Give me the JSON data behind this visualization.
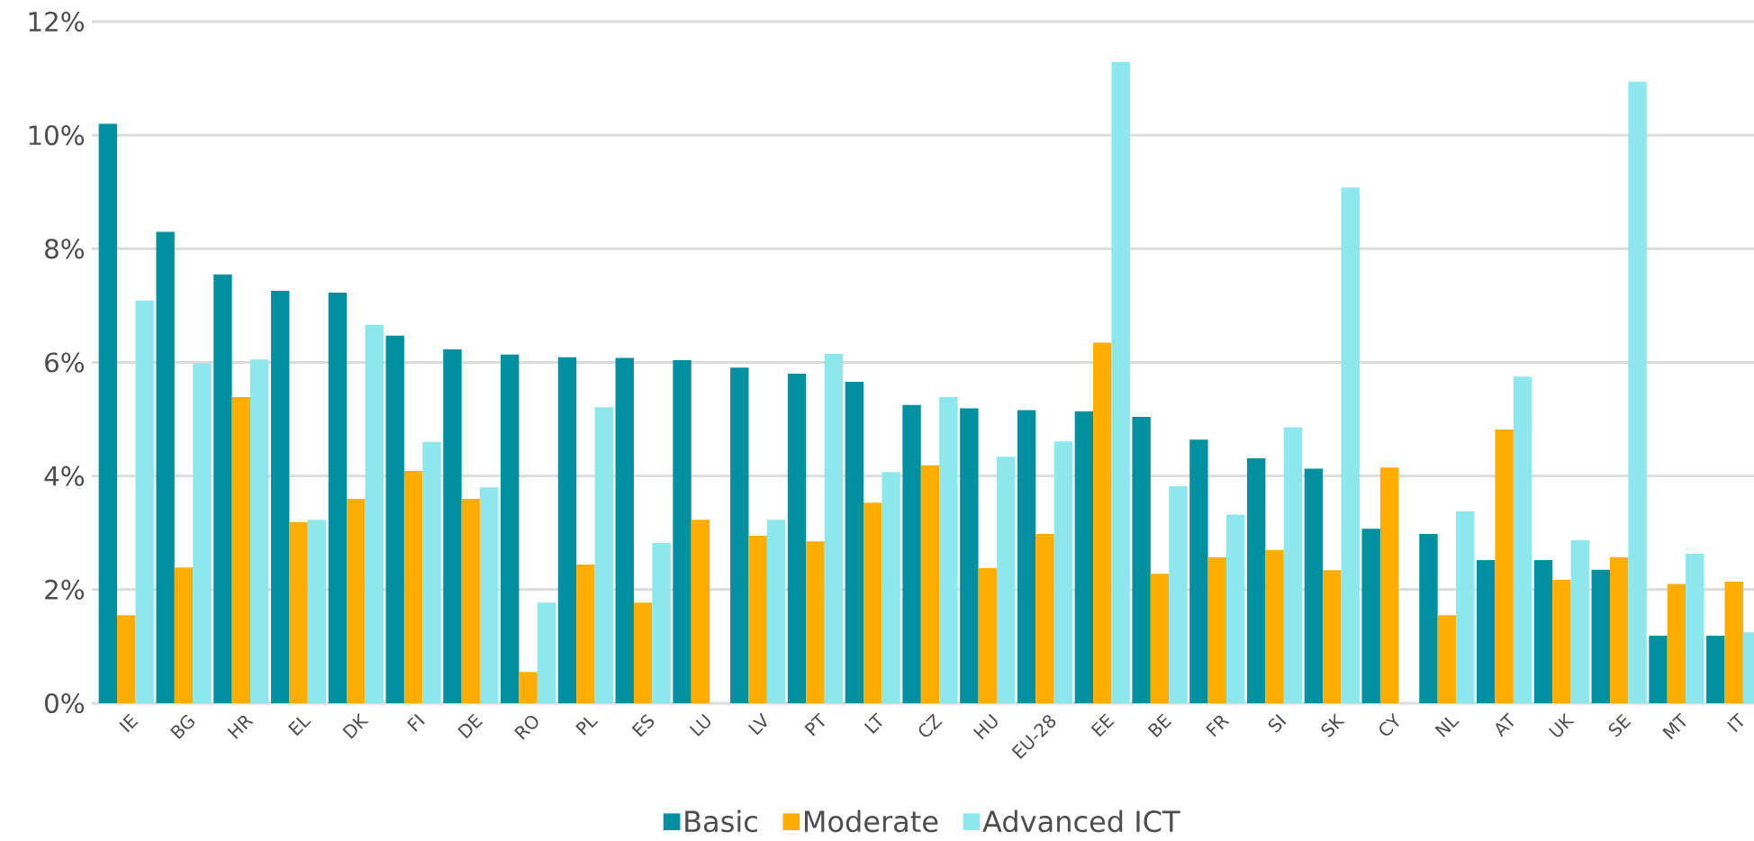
{
  "chart_data": {
    "type": "bar",
    "categories": [
      "IE",
      "BG",
      "HR",
      "EL",
      "DK",
      "FI",
      "DE",
      "RO",
      "PL",
      "ES",
      "LU",
      "LV",
      "PT",
      "LT",
      "CZ",
      "HU",
      "EU-28",
      "EE",
      "BE",
      "FR",
      "SI",
      "SK",
      "CY",
      "NL",
      "AT",
      "UK",
      "SE",
      "MT",
      "IT"
    ],
    "series": [
      {
        "name": "Basic",
        "color": "#0090a0",
        "values": [
          10.2,
          8.3,
          7.55,
          7.26,
          7.23,
          6.47,
          6.23,
          6.14,
          6.09,
          6.08,
          6.04,
          5.91,
          5.8,
          5.66,
          5.25,
          5.19,
          5.16,
          5.14,
          5.04,
          4.64,
          4.31,
          4.13,
          3.07,
          2.98,
          2.52,
          2.52,
          2.35,
          1.19,
          1.19
        ]
      },
      {
        "name": "Moderate",
        "color": "#ffad00",
        "values": [
          1.55,
          2.39,
          5.39,
          3.19,
          3.6,
          4.09,
          3.6,
          0.55,
          2.44,
          1.77,
          3.23,
          2.95,
          2.85,
          3.53,
          4.19,
          2.38,
          2.98,
          6.35,
          2.28,
          2.57,
          2.7,
          2.34,
          4.15,
          1.55,
          4.82,
          2.17,
          2.57,
          2.1,
          2.14
        ]
      },
      {
        "name": "Advanced ICT",
        "color": "#8ce8ec",
        "values": [
          7.09,
          5.98,
          6.05,
          3.23,
          6.66,
          4.6,
          3.8,
          1.77,
          5.21,
          2.82,
          null,
          3.23,
          6.15,
          4.07,
          5.39,
          4.34,
          4.61,
          11.29,
          3.82,
          3.32,
          4.86,
          9.08,
          null,
          3.38,
          5.75,
          2.87,
          10.94,
          2.63,
          1.25
        ]
      }
    ],
    "ylim": [
      0,
      12
    ],
    "yticks": [
      {
        "value": 0,
        "label": "0%"
      },
      {
        "value": 2,
        "label": "2%"
      },
      {
        "value": 4,
        "label": "4%"
      },
      {
        "value": 6,
        "label": "6%"
      },
      {
        "value": 8,
        "label": "8%"
      },
      {
        "value": 10,
        "label": "10%"
      },
      {
        "value": 12,
        "label": "12%"
      }
    ],
    "grid": "y",
    "legend": "bottom"
  }
}
